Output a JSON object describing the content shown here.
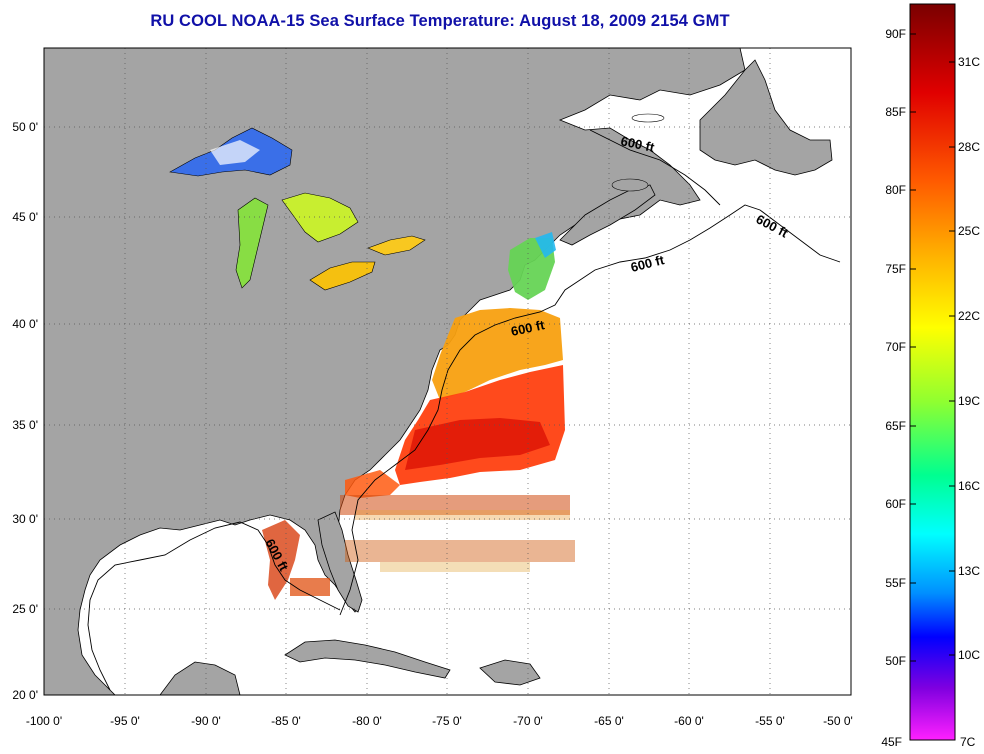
{
  "title": "RU COOL  NOAA-15  Sea Surface Temperature:  August 18, 2009 2154 GMT",
  "map": {
    "lon_range": [
      -100,
      -50
    ],
    "lat_range": [
      20,
      52.5
    ],
    "lon_ticks": [
      "-100 0'",
      "-95 0'",
      "-90 0'",
      "-85 0'",
      "-80 0'",
      "-75 0'",
      "-70 0'",
      "-65 0'",
      "-60 0'",
      "-55 0'",
      "-50 0'"
    ],
    "lat_ticks": [
      "20 0'",
      "25 0'",
      "30 0'",
      "35 0'",
      "40 0'",
      "45 0'",
      "50 0'"
    ],
    "contour_labels": [
      "600 ft",
      "600 ft",
      "600 ft",
      "600 ft",
      "600 ft"
    ],
    "land_color": "#a4a4a4",
    "ocean_color": "#ffffff",
    "grid": "dotted"
  },
  "colorbar": {
    "fahrenheit": [
      "90F",
      "85F",
      "80F",
      "75F",
      "70F",
      "65F",
      "60F",
      "55F",
      "50F",
      "45F"
    ],
    "celsius": [
      "31C",
      "28C",
      "25C",
      "22C",
      "19C",
      "16C",
      "13C",
      "10C",
      "7C"
    ],
    "range_c": [
      7,
      33
    ]
  }
}
